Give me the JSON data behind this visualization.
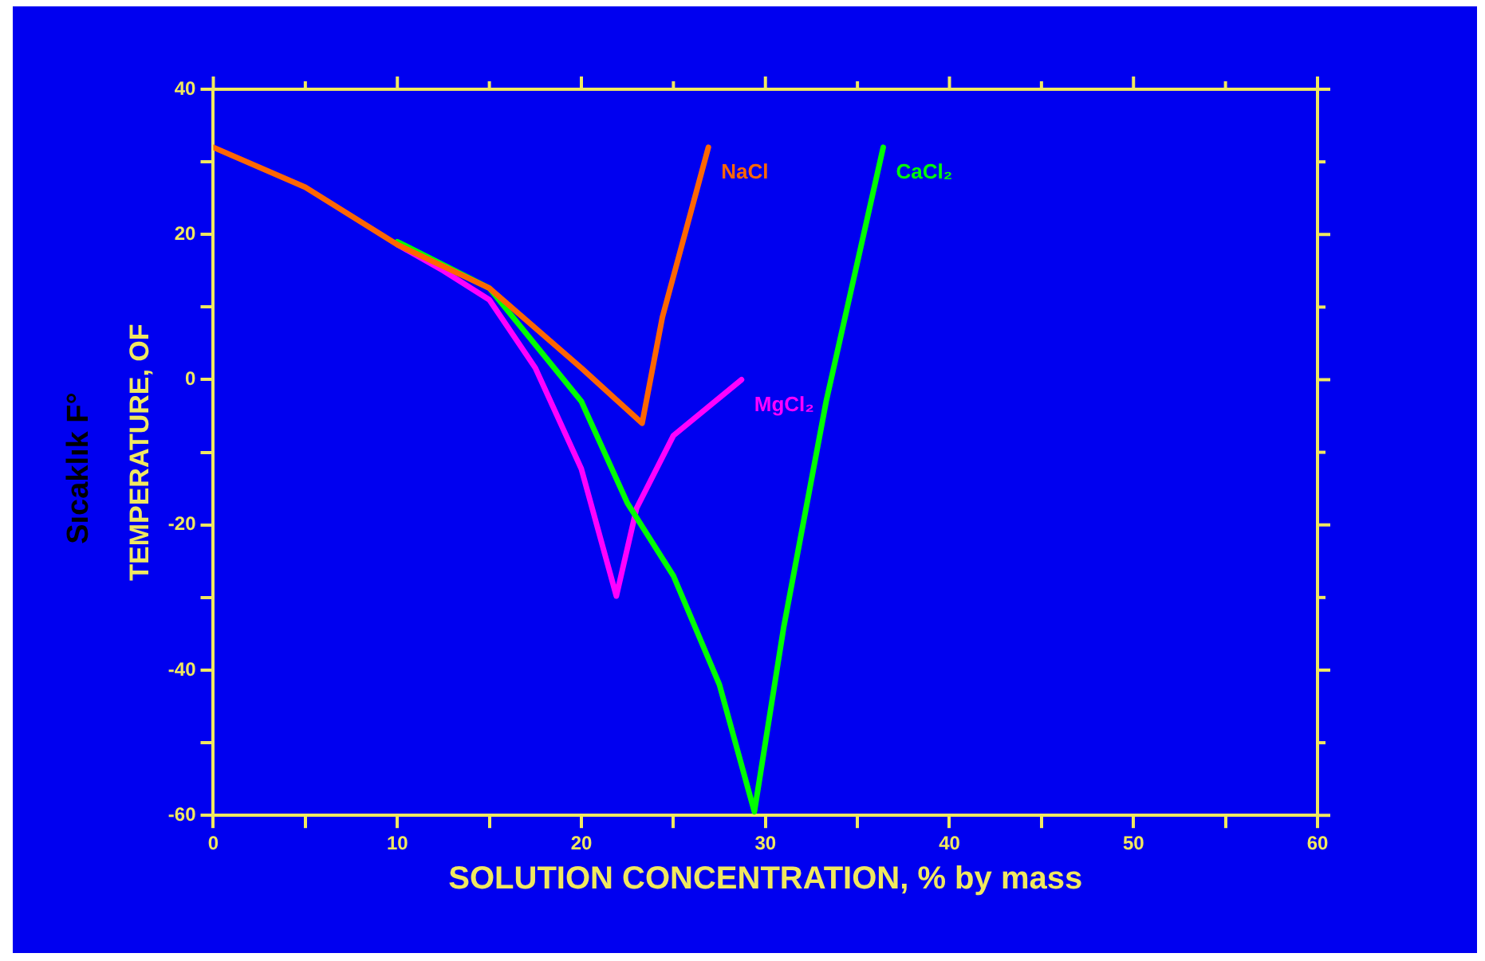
{
  "chart_data": {
    "type": "line",
    "xlabel": "SOLUTION CONCENTRATION, % by mass",
    "ylabel": "TEMPERATURE, OF",
    "annotations": [
      "Sıcaklık F°"
    ],
    "xlim": [
      0,
      60
    ],
    "xticks": [
      0,
      {
        "value": 5,
        "label": null
      },
      10,
      {
        "value": 15,
        "label": null
      },
      20,
      {
        "value": 25,
        "label": null
      },
      30,
      {
        "value": 35,
        "label": null
      },
      40,
      {
        "value": 45,
        "label": null
      },
      50,
      {
        "value": 55,
        "label": null
      },
      60
    ],
    "ylim": [
      -60,
      40
    ],
    "yticks": [
      -60,
      {
        "value": -50,
        "label": null
      },
      -40,
      {
        "value": -30,
        "label": null
      },
      -20,
      {
        "value": -10,
        "label": null
      },
      0,
      {
        "value": 10,
        "label": null
      },
      20,
      {
        "value": 30,
        "label": null
      },
      40
    ],
    "grid": false,
    "legend": false,
    "marker": "none",
    "series": [
      {
        "name": "NaCl",
        "color": "#ff6600",
        "x": [
          0,
          5,
          10,
          15,
          20,
          23.3,
          24.4,
          26.9
        ],
        "values": [
          32,
          26.5,
          18.6,
          12.6,
          1.6,
          -6,
          8.6,
          32
        ]
      },
      {
        "name": "CaCl₂",
        "color": "#00ff00",
        "x": [
          10,
          15,
          20,
          22.5,
          25,
          27.5,
          29.4,
          31,
          33.3,
          36.4
        ],
        "values": [
          19,
          12.6,
          -3,
          -17,
          -27,
          -42,
          -59.5,
          -34,
          -3,
          32
        ]
      },
      {
        "name": "MgCl₂",
        "color": "#ff00ff",
        "x": [
          10,
          12.5,
          15,
          17.5,
          20,
          21.9,
          23,
          25,
          28.7
        ],
        "values": [
          18.6,
          15,
          11,
          1.6,
          -12.3,
          -29.8,
          -17.7,
          -7.7,
          0
        ]
      }
    ]
  }
}
